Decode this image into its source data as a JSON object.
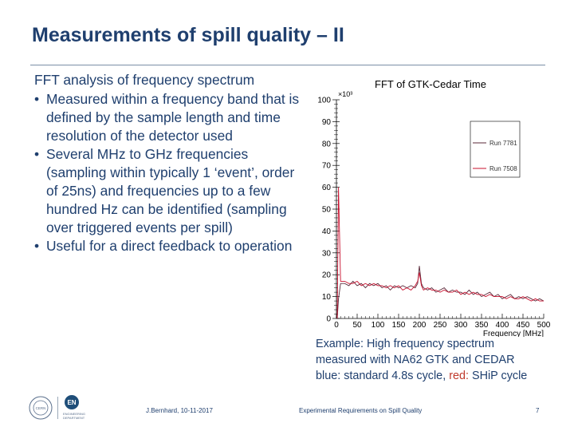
{
  "slide": {
    "title": "Measurements of spill quality – II",
    "intro": "FFT analysis of frequency spectrum",
    "bullets": [
      "Measured within a frequency band that is defined by the sample length and time resolution of the detector used",
      "Several MHz to GHz frequencies (sampling within typically 1 ‘event’, order of 25ns)  and frequencies up to a few hundred Hz can be identified (sampling over triggered events per spill)",
      "Useful for a direct feedback to operation"
    ],
    "caption": {
      "line1": "Example: High frequency spectrum",
      "line2": "measured with NA62 GTK and CEDAR",
      "line3_prefix": "blue: standard 4.8s cycle, ",
      "line3_red": "red:",
      "line3_suffix": " SHiP cycle"
    },
    "footer": {
      "author": "J.Bernhard, 10-11-2017",
      "event": "Experimental Requirements on Spill Quality",
      "page": "7"
    },
    "logo": {
      "en_badge": "EN",
      "en_text_1": "ENGINEERING",
      "en_text_2": "DEPARTMENT",
      "cern_text": "CERN"
    }
  },
  "colors": {
    "title": "#1f3f6e",
    "series_run7781": "#5a2a3a",
    "series_run7508": "#c8102e"
  },
  "chart_data": {
    "type": "line",
    "title": "FFT of GTK-Cedar Time",
    "xlabel": "Frequency [MHz]",
    "ylabel": "",
    "y_exponent_label": "×10³",
    "xlim": [
      0,
      500
    ],
    "ylim": [
      0,
      100
    ],
    "x_ticks": [
      0,
      50,
      100,
      150,
      200,
      250,
      300,
      350,
      400,
      450,
      500
    ],
    "y_ticks": [
      0,
      10,
      20,
      30,
      40,
      50,
      60,
      70,
      80,
      90,
      100
    ],
    "legend_position": "top-right",
    "x": [
      2,
      5,
      10,
      20,
      30,
      40,
      50,
      60,
      70,
      80,
      90,
      100,
      110,
      120,
      130,
      140,
      150,
      160,
      170,
      180,
      190,
      196,
      200,
      205,
      210,
      220,
      230,
      240,
      250,
      260,
      270,
      280,
      290,
      300,
      310,
      320,
      330,
      340,
      350,
      360,
      370,
      380,
      390,
      400,
      410,
      420,
      430,
      440,
      450,
      460,
      470,
      480,
      490,
      500
    ],
    "series": [
      {
        "name": "Run 7781",
        "values": [
          0,
          9,
          16,
          16,
          15,
          17,
          15,
          16,
          14,
          16,
          15,
          16,
          14,
          15,
          13,
          15,
          14,
          15,
          14,
          15,
          14,
          16,
          24,
          16,
          14,
          13,
          14,
          12,
          13,
          14,
          12,
          13,
          12,
          12,
          11,
          13,
          11,
          12,
          10,
          11,
          12,
          10,
          11,
          9,
          10,
          11,
          9,
          10,
          9,
          10,
          9,
          8,
          9,
          8
        ]
      },
      {
        "name": "Run 7508",
        "values": [
          0,
          60,
          17,
          17,
          16,
          16,
          17,
          15,
          16,
          15,
          16,
          15,
          15,
          14,
          15,
          14,
          15,
          13,
          14,
          13,
          15,
          17,
          21,
          15,
          13,
          14,
          13,
          13,
          12,
          13,
          12,
          12,
          13,
          11,
          12,
          11,
          12,
          11,
          11,
          10,
          11,
          10,
          10,
          10,
          9,
          10,
          9,
          9,
          10,
          9,
          8,
          9,
          8,
          8
        ]
      }
    ]
  }
}
